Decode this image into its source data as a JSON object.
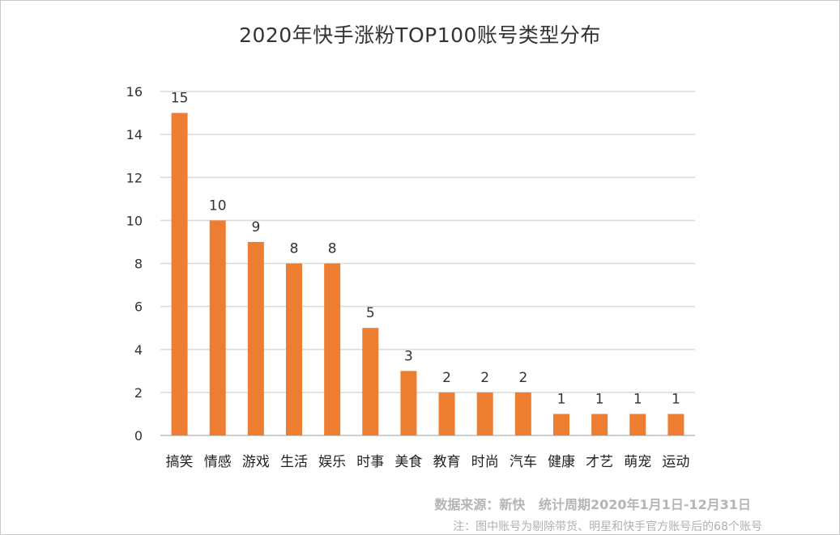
{
  "chart_data": {
    "type": "bar",
    "title": "2020年快手涨粉TOP100账号类型分布",
    "xlabel": "",
    "ylabel": "",
    "ylim": [
      0,
      16
    ],
    "yticks": [
      0,
      2,
      4,
      6,
      8,
      10,
      12,
      14,
      16
    ],
    "grid": true,
    "categories": [
      "搞笑",
      "情感",
      "游戏",
      "生活",
      "娱乐",
      "时事",
      "美食",
      "教育",
      "时尚",
      "汽车",
      "健康",
      "才艺",
      "萌宠",
      "运动"
    ],
    "values": [
      15,
      10,
      9,
      8,
      8,
      5,
      3,
      2,
      2,
      2,
      1,
      1,
      1,
      1
    ],
    "bar_color": "#ED7D31",
    "grid_color": "#D9D9D9"
  },
  "footer": {
    "source": "数据来源：新快   统计周期2020年1月1日-12月31日",
    "note": "注：图中账号为剔除带货、明星和快手官方账号后的68个账号"
  }
}
